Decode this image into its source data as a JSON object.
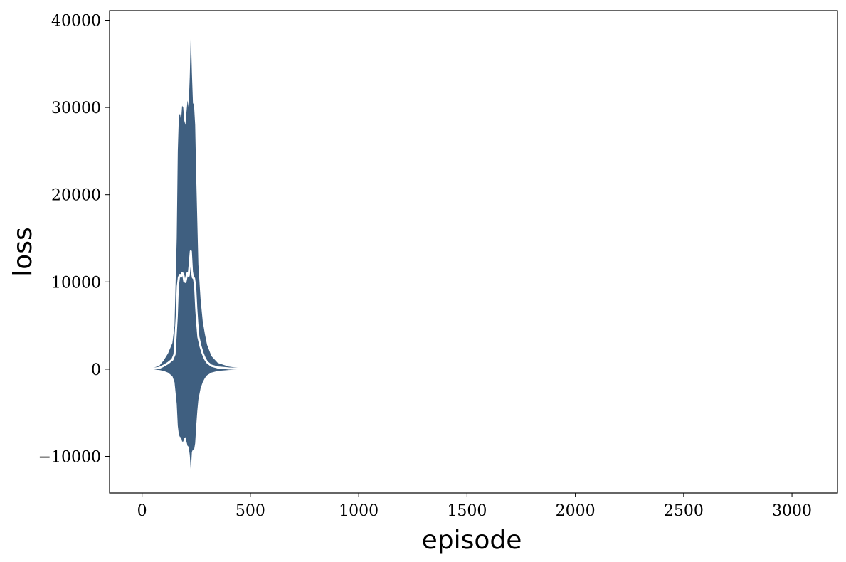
{
  "chart_data": {
    "type": "area",
    "xlabel": "episode",
    "ylabel": "loss",
    "xlim": [
      -150,
      3210
    ],
    "ylim": [
      -14200,
      41100
    ],
    "xticks": [
      0,
      500,
      1000,
      1500,
      2000,
      2500,
      3000
    ],
    "yticks": [
      -10000,
      0,
      10000,
      20000,
      30000,
      40000
    ],
    "xtick_labels": [
      "0",
      "500",
      "1000",
      "1500",
      "2000",
      "2500",
      "3000"
    ],
    "ytick_labels": [
      "−10000",
      "0",
      "10000",
      "20000",
      "30000",
      "40000"
    ],
    "grid": false,
    "band_color": "#3f5f80",
    "mean_color": "#ffffff",
    "series": [
      {
        "role": "band",
        "x": [
          0,
          40,
          80,
          100,
          120,
          140,
          150,
          160,
          165,
          170,
          175,
          180,
          185,
          190,
          195,
          200,
          205,
          210,
          215,
          220,
          225,
          230,
          235,
          240,
          245,
          250,
          255,
          260,
          270,
          280,
          290,
          300,
          320,
          350,
          400,
          450,
          500,
          550,
          600,
          680
        ],
        "upper": [
          0,
          50,
          400,
          1000,
          1800,
          3000,
          5000,
          15000,
          25000,
          29000,
          29300,
          28500,
          30200,
          30000,
          28500,
          28000,
          29500,
          30800,
          30000,
          33500,
          38500,
          34000,
          30500,
          30300,
          28000,
          22000,
          17000,
          12000,
          8000,
          5500,
          4000,
          2800,
          1500,
          700,
          300,
          120,
          50,
          20,
          5,
          0
        ],
        "lower": [
          0,
          -30,
          -100,
          -200,
          -400,
          -800,
          -1500,
          -4000,
          -6500,
          -7500,
          -7800,
          -7800,
          -8300,
          -8300,
          -7900,
          -7800,
          -8300,
          -8800,
          -8900,
          -9800,
          -11700,
          -9500,
          -9200,
          -9300,
          -8500,
          -6500,
          -4800,
          -3500,
          -2200,
          -1500,
          -1000,
          -700,
          -400,
          -200,
          -100,
          -40,
          -15,
          -5,
          -2,
          0
        ]
      },
      {
        "role": "mean",
        "x": [
          0,
          40,
          80,
          100,
          120,
          140,
          150,
          160,
          165,
          170,
          175,
          180,
          185,
          190,
          195,
          200,
          205,
          210,
          215,
          220,
          225,
          230,
          235,
          240,
          245,
          250,
          255,
          260,
          270,
          280,
          290,
          300,
          320,
          350,
          400,
          450,
          500,
          550,
          600,
          680
        ],
        "values": [
          0,
          20,
          150,
          400,
          700,
          1100,
          1700,
          6000,
          9500,
          10500,
          10800,
          10600,
          11000,
          10900,
          10100,
          10000,
          10600,
          11000,
          10700,
          12000,
          13500,
          11200,
          10500,
          10400,
          9500,
          7000,
          5200,
          3700,
          2600,
          1800,
          1200,
          800,
          400,
          200,
          80,
          30,
          10,
          3,
          1,
          0
        ]
      }
    ]
  }
}
